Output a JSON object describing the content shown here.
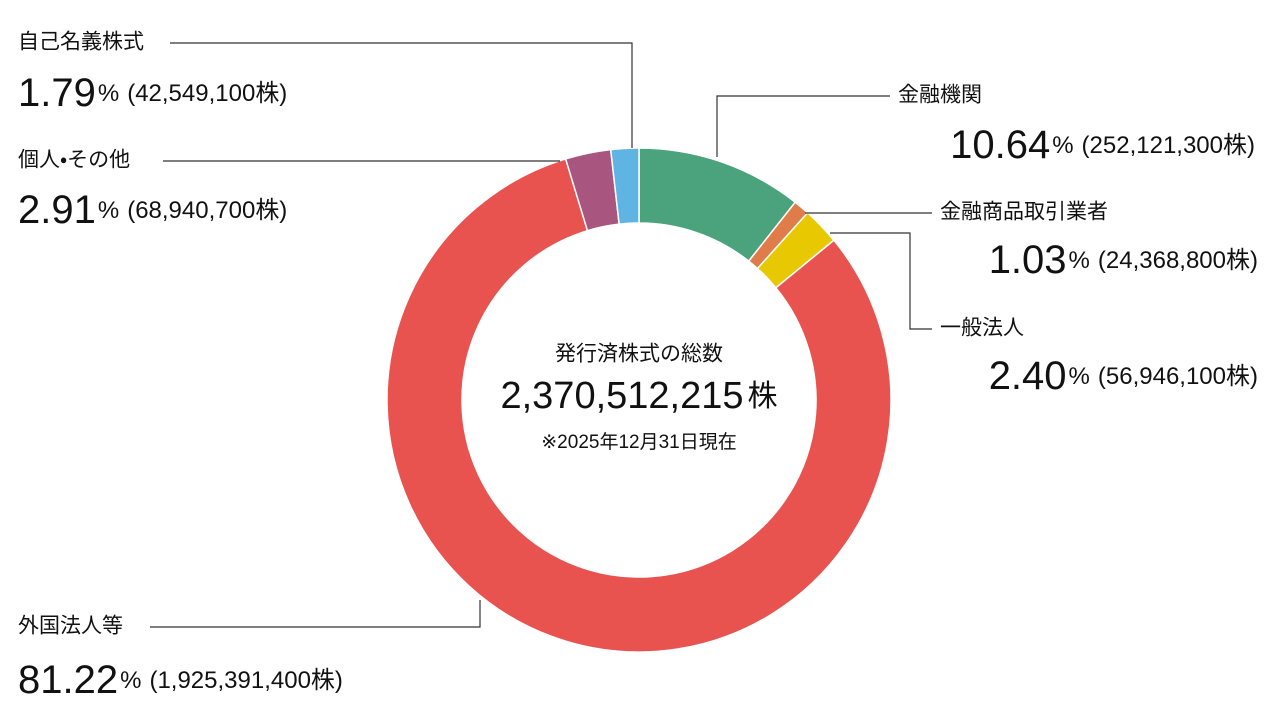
{
  "chart_data": {
    "type": "donut",
    "center_title": "発行済株式の総数",
    "center_total": "2,370,512,215",
    "center_unit": "株",
    "note": "※2025年12月31日現在",
    "unit": "%",
    "categories": [
      "金融機関",
      "金融商品取引業者",
      "一般法人",
      "外国法人等",
      "個人・その他",
      "自己名義株式"
    ],
    "values": [
      10.64,
      1.03,
      2.4,
      81.22,
      2.91,
      1.79
    ],
    "value_labels": [
      "10.64",
      "1.03",
      "2.40",
      "81.22",
      "2.91",
      "1.79"
    ],
    "shares": [
      "(252,121,300株)",
      "(24,368,800株)",
      "(56,946,100株)",
      "(1,925,391,400株)",
      "(68,940,700株)",
      "(42,549,100株)"
    ],
    "colors": [
      "#4aa37c",
      "#e07b4a",
      "#e8c800",
      "#e8534f",
      "#a8557f",
      "#5fb4e4"
    ]
  }
}
